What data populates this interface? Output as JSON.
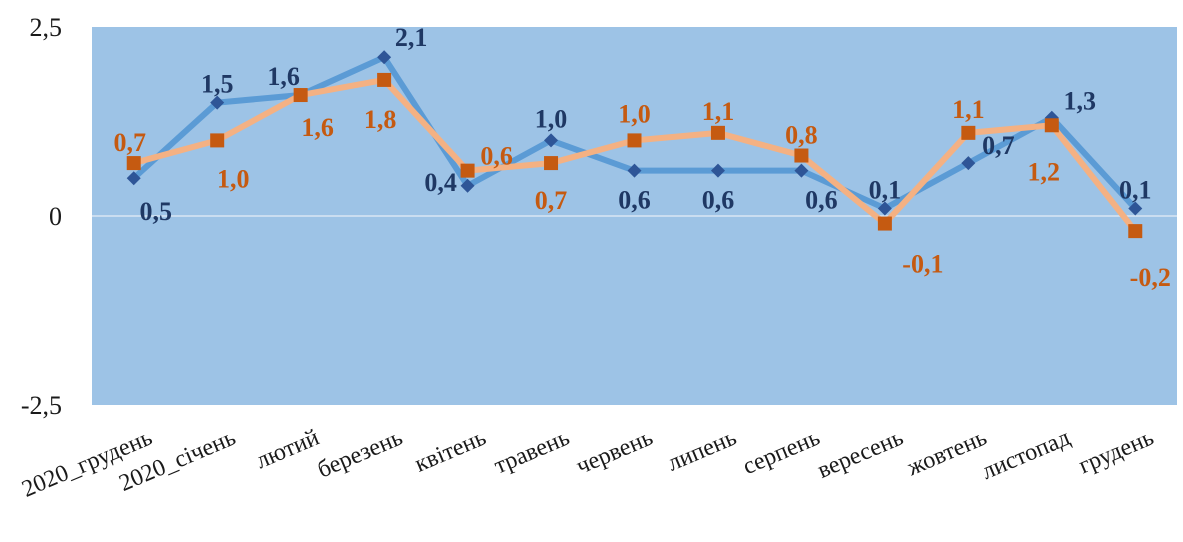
{
  "chart_data": {
    "type": "line",
    "categories": [
      "2020_грудень",
      "2020_січень",
      "лютий",
      "березень",
      "квітень",
      "травень",
      "червень",
      "липень",
      "серпень",
      "вересень",
      "жовтень",
      "листопад",
      "грудень"
    ],
    "series": [
      {
        "values": [
          0.5,
          1.5,
          1.6,
          2.1,
          0.4,
          1.0,
          0.6,
          0.6,
          0.6,
          0.1,
          0.7,
          1.3,
          0.1
        ],
        "labels": [
          "0,5",
          "1,5",
          "1,6",
          "2,1",
          "0,4",
          "1,0",
          "0,6",
          "0,6",
          "0,6",
          "0,1",
          "0,7",
          "1,3",
          "0,1"
        ],
        "color": "#5b9bd5",
        "marker_color": "#2e5597",
        "label_color": "#1f3864",
        "marker": "diamond"
      },
      {
        "values": [
          0.7,
          1.0,
          1.6,
          1.8,
          0.6,
          0.7,
          1.0,
          1.1,
          0.8,
          -0.1,
          1.1,
          1.2,
          -0.2
        ],
        "labels": [
          "0,7",
          "1,0",
          "1,6",
          "1,8",
          "0,6",
          "0,7",
          "1,0",
          "1,1",
          "0,8",
          "-0,1",
          "1,1",
          "1,2",
          "-0,2"
        ],
        "color": "#f4b183",
        "marker_color": "#c55a11",
        "label_color": "#c55a11",
        "marker": "square"
      }
    ],
    "ylim": [
      -2.5,
      2.5
    ],
    "yticks": [
      "2,5",
      "0",
      "-2,5"
    ],
    "plot_background": "#9dc3e6",
    "grid": false,
    "legend": "none"
  }
}
